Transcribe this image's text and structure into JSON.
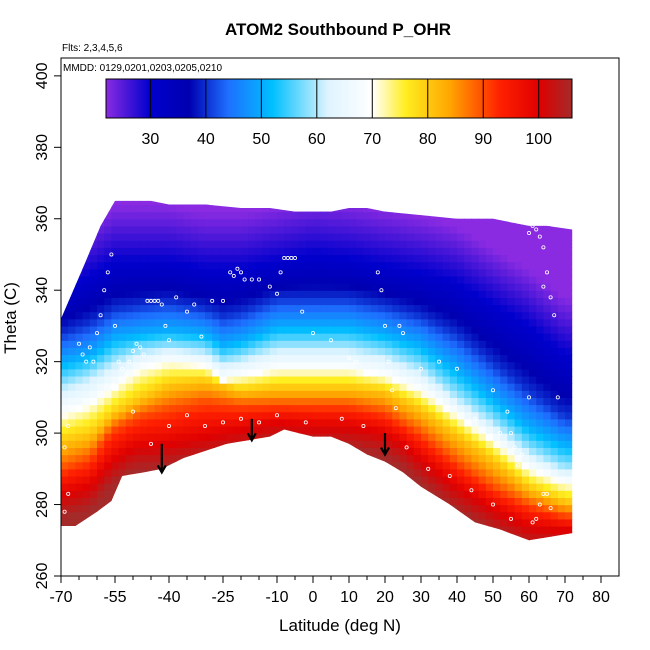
{
  "chart_data": {
    "type": "heatmap",
    "title": "ATOM2 Southbound P_OHR",
    "annotations": [
      "Flts: 2,3,4,5,6",
      "MMDD: 0129,0201,0203,0205,0210"
    ],
    "xlabel": "Latitude (deg N)",
    "ylabel": "Theta (C)",
    "xlim": [
      -70,
      85
    ],
    "ylim": [
      260,
      405
    ],
    "x_ticks": [
      -70,
      -55,
      -40,
      -25,
      -10,
      0,
      10,
      20,
      30,
      40,
      50,
      60,
      70,
      80
    ],
    "x_tick_labels": [
      "-70",
      "-55",
      "-40",
      "-25",
      "-10",
      "0",
      "10",
      "20",
      "30",
      "40",
      "50",
      "60",
      "70",
      "80"
    ],
    "x_minor_ticks": [
      -65,
      -60,
      -50,
      -45,
      -35,
      -30,
      -20,
      -15,
      -5,
      5,
      15,
      25,
      35,
      45,
      55,
      65,
      75
    ],
    "y_ticks": [
      260,
      280,
      300,
      320,
      340,
      360,
      380,
      400
    ],
    "y_tick_labels": [
      "260",
      "280",
      "300",
      "320",
      "340",
      "360",
      "380",
      "400"
    ],
    "colorbar": {
      "range": [
        22,
        106
      ],
      "ticks": [
        30,
        40,
        50,
        60,
        70,
        80,
        90,
        100
      ],
      "tick_labels": [
        "30",
        "40",
        "50",
        "60",
        "70",
        "80",
        "90",
        "100"
      ],
      "stops": [
        {
          "v": 22,
          "c": "#8a2be2"
        },
        {
          "v": 30,
          "c": "#0000cd"
        },
        {
          "v": 37,
          "c": "#0000b0"
        },
        {
          "v": 44,
          "c": "#1e6fff"
        },
        {
          "v": 52,
          "c": "#00bfff"
        },
        {
          "v": 62,
          "c": "#dff4ff"
        },
        {
          "v": 70,
          "c": "#ffffff"
        },
        {
          "v": 76,
          "c": "#ffee20"
        },
        {
          "v": 84,
          "c": "#ffa500"
        },
        {
          "v": 93,
          "c": "#ff2000"
        },
        {
          "v": 100,
          "c": "#e00000"
        },
        {
          "v": 106,
          "c": "#a52a2a"
        }
      ]
    },
    "surface_boundary": [
      [
        -70,
        274
      ],
      [
        -66,
        274
      ],
      [
        -60,
        278
      ],
      [
        -56,
        281
      ],
      [
        -53,
        288
      ],
      [
        -47,
        289
      ],
      [
        -42,
        290
      ],
      [
        -36,
        293
      ],
      [
        -30,
        295
      ],
      [
        -24,
        297
      ],
      [
        -18,
        298
      ],
      [
        -12,
        299
      ],
      [
        -8,
        301
      ],
      [
        -4,
        300
      ],
      [
        0,
        299
      ],
      [
        5,
        299
      ],
      [
        10,
        297
      ],
      [
        15,
        294
      ],
      [
        20,
        292
      ],
      [
        25,
        289
      ],
      [
        30,
        285
      ],
      [
        38,
        280
      ],
      [
        45,
        275
      ],
      [
        52,
        273
      ],
      [
        60,
        270
      ],
      [
        66,
        271
      ],
      [
        72,
        272
      ]
    ],
    "top_boundary": [
      [
        -70,
        332
      ],
      [
        -64,
        346
      ],
      [
        -59,
        358
      ],
      [
        -55,
        365
      ],
      [
        -50,
        365
      ],
      [
        -45,
        365
      ],
      [
        -40,
        364
      ],
      [
        -30,
        364
      ],
      [
        -20,
        363
      ],
      [
        -12,
        363
      ],
      [
        -5,
        362
      ],
      [
        5,
        362
      ],
      [
        10,
        363
      ],
      [
        15,
        363
      ],
      [
        20,
        362
      ],
      [
        30,
        361
      ],
      [
        40,
        360
      ],
      [
        50,
        360
      ],
      [
        55,
        359
      ],
      [
        60,
        358
      ],
      [
        65,
        358
      ],
      [
        72,
        357
      ]
    ],
    "isolines": [
      {
        "value": 100,
        "points": [
          [
            -70,
            283
          ],
          [
            -62,
            285
          ],
          [
            -56,
            292
          ],
          [
            -50,
            296
          ],
          [
            -40,
            297
          ],
          [
            -30,
            299
          ],
          [
            -20,
            301
          ],
          [
            -10,
            303
          ],
          [
            0,
            302
          ],
          [
            10,
            302
          ],
          [
            20,
            300
          ],
          [
            25,
            297
          ],
          [
            32,
            291
          ],
          [
            40,
            285
          ],
          [
            50,
            279
          ],
          [
            60,
            274
          ],
          [
            70,
            273
          ]
        ]
      },
      {
        "value": 90,
        "points": [
          [
            -70,
            290
          ],
          [
            -62,
            293
          ],
          [
            -56,
            301
          ],
          [
            -48,
            305
          ],
          [
            -40,
            307
          ],
          [
            -30,
            309
          ],
          [
            -20,
            308
          ],
          [
            -10,
            308
          ],
          [
            0,
            308
          ],
          [
            10,
            308
          ],
          [
            20,
            306
          ],
          [
            30,
            300
          ],
          [
            40,
            292
          ],
          [
            50,
            285
          ],
          [
            60,
            280
          ],
          [
            70,
            277
          ]
        ]
      },
      {
        "value": 80,
        "points": [
          [
            -70,
            298
          ],
          [
            -62,
            300
          ],
          [
            -55,
            306
          ],
          [
            -48,
            310
          ],
          [
            -40,
            314
          ],
          [
            -30,
            315
          ],
          [
            -20,
            312
          ],
          [
            -10,
            313
          ],
          [
            0,
            313
          ],
          [
            10,
            313
          ],
          [
            20,
            312
          ],
          [
            30,
            307
          ],
          [
            40,
            300
          ],
          [
            50,
            293
          ],
          [
            60,
            285
          ],
          [
            70,
            281
          ]
        ]
      },
      {
        "value": 70,
        "points": [
          [
            -70,
            305
          ],
          [
            -62,
            308
          ],
          [
            -55,
            313
          ],
          [
            -48,
            318
          ],
          [
            -40,
            320
          ],
          [
            -30,
            319
          ],
          [
            -25,
            315
          ],
          [
            -20,
            316
          ],
          [
            -10,
            318
          ],
          [
            0,
            318
          ],
          [
            10,
            318
          ],
          [
            20,
            316
          ],
          [
            30,
            312
          ],
          [
            40,
            305
          ],
          [
            50,
            298
          ],
          [
            60,
            290
          ],
          [
            70,
            286
          ]
        ]
      },
      {
        "value": 60,
        "points": [
          [
            -70,
            313
          ],
          [
            -62,
            316
          ],
          [
            -55,
            320
          ],
          [
            -48,
            323
          ],
          [
            -40,
            324
          ],
          [
            -30,
            323
          ],
          [
            -25,
            320
          ],
          [
            -20,
            321
          ],
          [
            -10,
            324
          ],
          [
            0,
            324
          ],
          [
            10,
            324
          ],
          [
            20,
            322
          ],
          [
            30,
            318
          ],
          [
            40,
            310
          ],
          [
            50,
            303
          ],
          [
            60,
            295
          ],
          [
            70,
            290
          ]
        ]
      },
      {
        "value": 50,
        "points": [
          [
            -70,
            320
          ],
          [
            -62,
            322
          ],
          [
            -55,
            327
          ],
          [
            -48,
            328
          ],
          [
            -40,
            329
          ],
          [
            -30,
            328
          ],
          [
            -25,
            325
          ],
          [
            -20,
            326
          ],
          [
            -10,
            330
          ],
          [
            0,
            330
          ],
          [
            10,
            330
          ],
          [
            20,
            328
          ],
          [
            30,
            325
          ],
          [
            40,
            318
          ],
          [
            50,
            310
          ],
          [
            60,
            302
          ],
          [
            70,
            297
          ]
        ]
      },
      {
        "value": 40,
        "points": [
          [
            -70,
            328
          ],
          [
            -62,
            331
          ],
          [
            -55,
            335
          ],
          [
            -48,
            336
          ],
          [
            -40,
            337
          ],
          [
            -30,
            335
          ],
          [
            -25,
            333
          ],
          [
            -20,
            334
          ],
          [
            -10,
            338
          ],
          [
            0,
            338
          ],
          [
            10,
            338
          ],
          [
            20,
            336
          ],
          [
            30,
            333
          ],
          [
            40,
            328
          ],
          [
            50,
            320
          ],
          [
            60,
            312
          ],
          [
            70,
            305
          ]
        ]
      },
      {
        "value": 30,
        "points": [
          [
            -70,
            340
          ],
          [
            -62,
            344
          ],
          [
            -55,
            348
          ],
          [
            -48,
            348
          ],
          [
            -40,
            348
          ],
          [
            -30,
            346
          ],
          [
            -20,
            346
          ],
          [
            -10,
            348
          ],
          [
            0,
            350
          ],
          [
            10,
            349
          ],
          [
            20,
            347
          ],
          [
            30,
            345
          ],
          [
            40,
            342
          ],
          [
            50,
            336
          ],
          [
            60,
            330
          ],
          [
            70,
            322
          ]
        ]
      }
    ],
    "profile_points": [
      [
        -65,
        325
      ],
      [
        -64,
        322
      ],
      [
        -63,
        320
      ],
      [
        -62,
        324
      ],
      [
        -61,
        320
      ],
      [
        -60,
        328
      ],
      [
        -59,
        333
      ],
      [
        -58,
        340
      ],
      [
        -57,
        345
      ],
      [
        -56,
        350
      ],
      [
        -55,
        330
      ],
      [
        -54,
        320
      ],
      [
        -53,
        318
      ],
      [
        -52,
        316
      ],
      [
        -51,
        320
      ],
      [
        -50,
        323
      ],
      [
        -49,
        325
      ],
      [
        -48,
        324
      ],
      [
        -47,
        322
      ],
      [
        -46,
        337
      ],
      [
        -45,
        337
      ],
      [
        -44,
        337
      ],
      [
        -43,
        337
      ],
      [
        -42,
        336
      ],
      [
        -41,
        330
      ],
      [
        -40,
        326
      ],
      [
        -38,
        338
      ],
      [
        -35,
        334
      ],
      [
        -33,
        336
      ],
      [
        -31,
        327
      ],
      [
        -28,
        337
      ],
      [
        -25,
        337
      ],
      [
        -23,
        345
      ],
      [
        -22,
        344
      ],
      [
        -21,
        346
      ],
      [
        -20,
        345
      ],
      [
        -19,
        343
      ],
      [
        -17,
        343
      ],
      [
        -15,
        343
      ],
      [
        -12,
        341
      ],
      [
        -10,
        339
      ],
      [
        -9,
        345
      ],
      [
        -8,
        349
      ],
      [
        -7,
        349
      ],
      [
        -6,
        349
      ],
      [
        -5,
        349
      ],
      [
        -3,
        334
      ],
      [
        0,
        328
      ],
      [
        5,
        326
      ],
      [
        10,
        321
      ],
      [
        12,
        320
      ],
      [
        18,
        345
      ],
      [
        19,
        340
      ],
      [
        20,
        330
      ],
      [
        21,
        320
      ],
      [
        22,
        312
      ],
      [
        23,
        307
      ],
      [
        24,
        330
      ],
      [
        25,
        328
      ],
      [
        30,
        318
      ],
      [
        35,
        320
      ],
      [
        40,
        318
      ],
      [
        45,
        304
      ],
      [
        50,
        312
      ],
      [
        52,
        300
      ],
      [
        54,
        306
      ],
      [
        55,
        300
      ],
      [
        56,
        296
      ],
      [
        57,
        291
      ],
      [
        58,
        294
      ],
      [
        60,
        310
      ],
      [
        61,
        275
      ],
      [
        62,
        276
      ],
      [
        63,
        280
      ],
      [
        64,
        283
      ],
      [
        65,
        283
      ],
      [
        66,
        279
      ],
      [
        60,
        356
      ],
      [
        61,
        358
      ],
      [
        62,
        357
      ],
      [
        63,
        355
      ],
      [
        64,
        352
      ],
      [
        64,
        341
      ],
      [
        65,
        345
      ],
      [
        66,
        338
      ],
      [
        67,
        333
      ],
      [
        68,
        310
      ],
      [
        -68,
        302
      ],
      [
        -69,
        296
      ],
      [
        -68,
        283
      ],
      [
        -69,
        278
      ],
      [
        -50,
        306
      ],
      [
        -45,
        297
      ],
      [
        -40,
        302
      ],
      [
        -35,
        305
      ],
      [
        -30,
        302
      ],
      [
        -25,
        303
      ],
      [
        -20,
        304
      ],
      [
        -15,
        303
      ],
      [
        -10,
        305
      ],
      [
        -2,
        303
      ],
      [
        8,
        304
      ],
      [
        14,
        302
      ],
      [
        26,
        296
      ],
      [
        32,
        290
      ],
      [
        38,
        288
      ],
      [
        44,
        284
      ],
      [
        50,
        280
      ],
      [
        55,
        276
      ]
    ],
    "arrows": [
      {
        "x": -42,
        "y_from": 297,
        "y_to": 289
      },
      {
        "x": -17,
        "y_from": 304,
        "y_to": 298
      },
      {
        "x": 20,
        "y_from": 300,
        "y_to": 294
      }
    ]
  }
}
